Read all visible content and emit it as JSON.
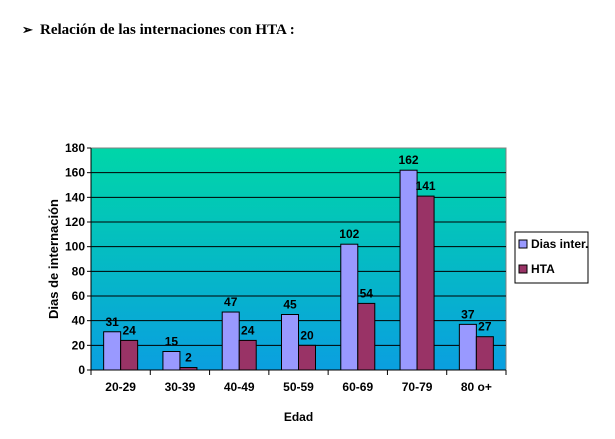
{
  "heading": {
    "bullet_icon": "arrow-bullet-icon",
    "text": "Relación de las internaciones con HTA :"
  },
  "chart_data": {
    "type": "bar",
    "title": "Relación de las internaciones con HTA :",
    "xlabel": "Edad",
    "ylabel": "Dias de internación",
    "categories": [
      "20-29",
      "30-39",
      "40-49",
      "50-59",
      "60-69",
      "70-79",
      "80 o+"
    ],
    "series": [
      {
        "name": "Dias inter.",
        "values": [
          31,
          15,
          47,
          45,
          102,
          162,
          37
        ],
        "color": "#9999ff"
      },
      {
        "name": "HTA",
        "values": [
          24,
          2,
          24,
          20,
          54,
          141,
          27
        ],
        "color": "#993366"
      }
    ],
    "ylim": [
      0,
      180
    ],
    "yticks": [
      0,
      20,
      40,
      60,
      80,
      100,
      120,
      140,
      160,
      180
    ],
    "grid": true,
    "legend": "right",
    "plot_gradient": [
      "#0a9fe0",
      "#00d6a8"
    ],
    "data_labels": true
  }
}
